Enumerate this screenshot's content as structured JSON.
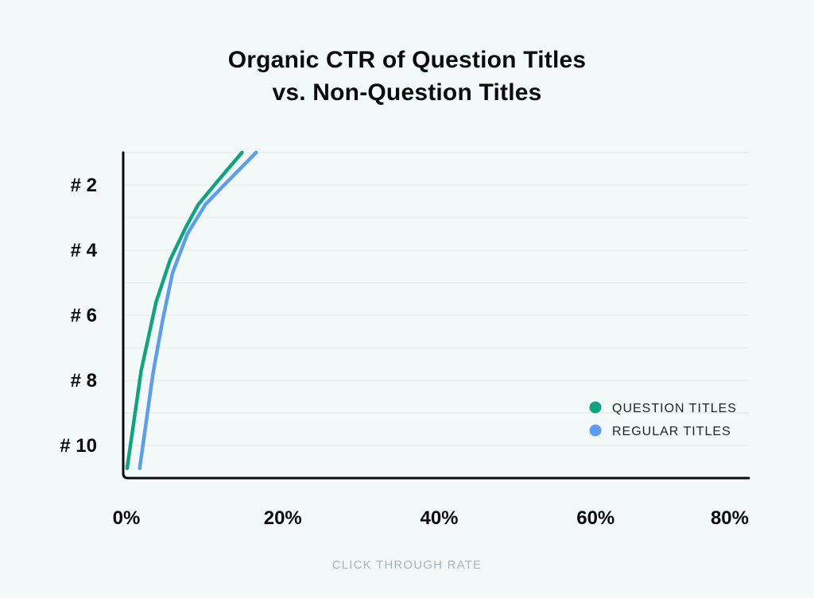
{
  "title_lines": [
    "Organic CTR of Question Titles",
    "vs. Non-Question Titles"
  ],
  "xlabel": "CLICK THROUGH RATE",
  "colors": {
    "question": "#10a47d",
    "regular": "#5b9ef0",
    "axis": "#0b0b0b",
    "grid": "#e3ecea"
  },
  "chart_data": {
    "type": "line",
    "title": "Organic CTR of Question Titles vs. Non-Question Titles",
    "xlabel": "CLICK THROUGH RATE",
    "ylabel": "",
    "xlim": [
      0,
      80
    ],
    "ylim": [
      1,
      11
    ],
    "y_reversed": true,
    "x_ticks": [
      "0%",
      "20%",
      "40%",
      "60%",
      "80%"
    ],
    "x_tick_values": [
      0,
      20,
      40,
      60,
      80
    ],
    "y_ticks": [
      "# 2",
      "# 4",
      "# 6",
      "# 8",
      "# 10"
    ],
    "y_tick_values": [
      2,
      4,
      6,
      8,
      10
    ],
    "grid": true,
    "legend_position": "bottom-right",
    "series": [
      {
        "name": "QUESTION TITLES",
        "color": "#10a47d",
        "points": [
          [
            15.2,
            1
          ],
          [
            12.0,
            1.9
          ],
          [
            9.6,
            2.6
          ],
          [
            8.0,
            3.3
          ],
          [
            6.0,
            4.3
          ],
          [
            4.2,
            5.6
          ],
          [
            2.3,
            7.7
          ],
          [
            0.5,
            10.7
          ]
        ]
      },
      {
        "name": "REGULAR TITLES",
        "color": "#5b9ef0",
        "points": [
          [
            17.0,
            1
          ],
          [
            12.5,
            2.1
          ],
          [
            10.5,
            2.6
          ],
          [
            8.2,
            3.5
          ],
          [
            6.3,
            4.7
          ],
          [
            5.0,
            6.2
          ],
          [
            3.8,
            7.8
          ],
          [
            2.1,
            10.7
          ]
        ]
      }
    ]
  }
}
